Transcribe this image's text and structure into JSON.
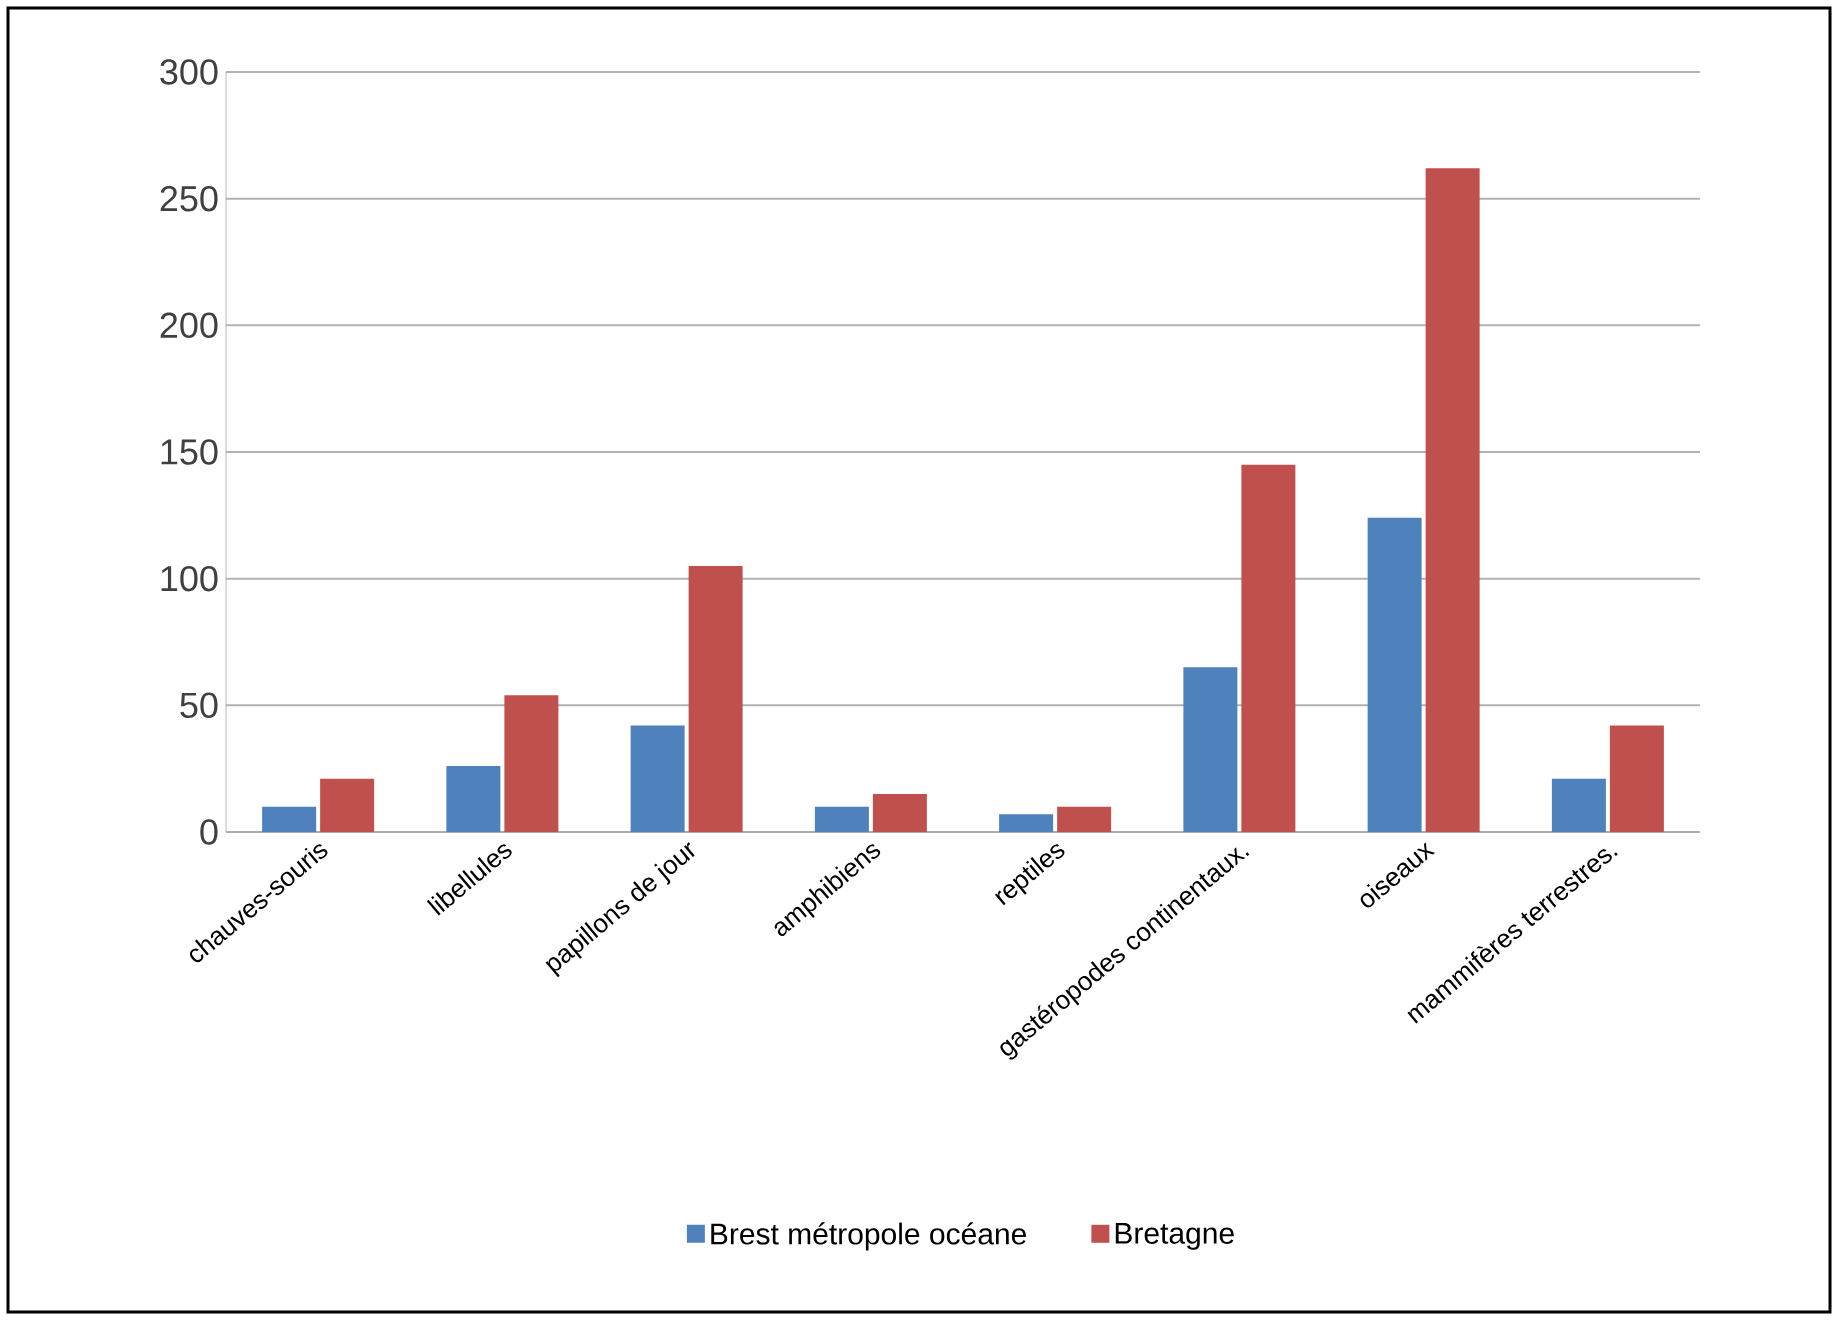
{
  "chart_data": {
    "type": "bar",
    "categories": [
      "chauves-souris",
      "libellules",
      "papillons de jour",
      "amphibiens",
      "reptiles",
      "gastéropodes continentaux.",
      "oiseaux",
      "mammifères terrestres."
    ],
    "series": [
      {
        "name": "Brest métropole océane",
        "color": "#4f81bd",
        "values": [
          10,
          26,
          42,
          10,
          7,
          65,
          124,
          21
        ]
      },
      {
        "name": "Bretagne",
        "color": "#c0504d",
        "values": [
          21,
          54,
          105,
          15,
          10,
          145,
          262,
          42
        ]
      }
    ],
    "ylim": [
      0,
      300
    ],
    "yticks": [
      0,
      50,
      100,
      150,
      200,
      250,
      300
    ],
    "grid": "y",
    "legend": "bottom"
  }
}
